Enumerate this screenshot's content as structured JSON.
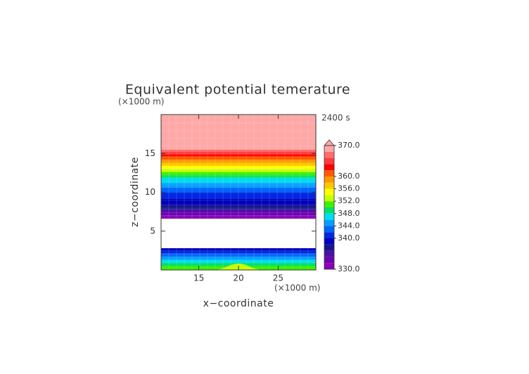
{
  "chart_data": {
    "type": "contour",
    "title": "Equivalent potential temerature",
    "y_unit": "(×1000 m)",
    "x_unit": "(×1000 m)",
    "time_label": "2400 s",
    "x_label": "x−coordinate",
    "y_label": "z−coordinate",
    "xlim": [
      10.25,
      29.75
    ],
    "ylim": [
      0,
      20
    ],
    "xticks": [
      15,
      20,
      25
    ],
    "yticks": [
      5,
      10,
      15
    ],
    "levels": [
      330,
      332,
      334,
      336,
      338,
      340,
      342,
      344,
      346,
      348,
      350,
      352,
      354,
      356,
      358,
      360,
      362,
      364,
      366,
      368
    ],
    "colors": [
      "#8c00b4",
      "#6e00b4",
      "#4c10a8",
      "#16168c",
      "#0000c0",
      "#0028e0",
      "#0064ff",
      "#00a0ff",
      "#00dcf0",
      "#00e070",
      "#40f000",
      "#c8ff00",
      "#ffff00",
      "#ffc800",
      "#ff9600",
      "#ff5a00",
      "#ff0000",
      "#ff3c3c",
      "#ff6e6e",
      "#ffa8a8"
    ],
    "over_color": "#ffa8a8",
    "clim": [
      330,
      370
    ],
    "cticks": [
      {
        "value": 330,
        "label": "330.0"
      },
      {
        "value": 340,
        "label": "340.0"
      },
      {
        "value": 344,
        "label": "344.0"
      },
      {
        "value": 348,
        "label": "348.0"
      },
      {
        "value": 352,
        "label": "352.0"
      },
      {
        "value": 356,
        "label": "356.0"
      },
      {
        "value": 360,
        "label": "360.0"
      },
      {
        "value": 370,
        "label": "370.0"
      }
    ],
    "bands": [
      {
        "z": [
          15.5,
          20
        ],
        "level": 368
      },
      {
        "z": [
          15.2,
          15.5
        ],
        "level": 366
      },
      {
        "z": [
          14.9,
          15.2
        ],
        "level": 364
      },
      {
        "z": [
          14.6,
          14.9
        ],
        "level": 362
      },
      {
        "z": [
          14.2,
          14.6
        ],
        "level": 360
      },
      {
        "z": [
          13.8,
          14.2
        ],
        "level": 358
      },
      {
        "z": [
          13.4,
          13.8
        ],
        "level": 356
      },
      {
        "z": [
          13.0,
          13.4
        ],
        "level": 354
      },
      {
        "z": [
          12.6,
          13.0
        ],
        "level": 352
      },
      {
        "z": [
          12.2,
          12.6
        ],
        "level": 350
      },
      {
        "z": [
          11.8,
          12.2
        ],
        "level": 348
      },
      {
        "z": [
          11.2,
          11.8
        ],
        "level": 346
      },
      {
        "z": [
          10.6,
          11.2
        ],
        "level": 344
      },
      {
        "z": [
          10.0,
          10.6
        ],
        "level": 342
      },
      {
        "z": [
          9.2,
          10.0
        ],
        "level": 340
      },
      {
        "z": [
          8.4,
          9.2
        ],
        "level": 338
      },
      {
        "z": [
          7.8,
          8.4
        ],
        "level": 336
      },
      {
        "z": [
          7.4,
          7.8
        ],
        "level": 334
      },
      {
        "z": [
          7.0,
          7.4
        ],
        "level": 332
      },
      {
        "z": [
          6.6,
          7.0
        ],
        "level": 330
      },
      {
        "z": [
          2.5,
          2.8
        ],
        "level": 338
      },
      {
        "z": [
          2.1,
          2.5
        ],
        "level": 340
      },
      {
        "z": [
          1.7,
          2.1
        ],
        "level": 342
      },
      {
        "z": [
          1.3,
          1.7
        ],
        "level": 344
      },
      {
        "z": [
          0.9,
          1.3
        ],
        "level": 346
      },
      {
        "z": [
          0.5,
          0.9
        ],
        "level": 348
      },
      {
        "z": [
          0,
          0.5
        ],
        "level": 350
      }
    ],
    "patches": [
      {
        "x": [
          16.5,
          23.5
        ],
        "z": [
          0,
          0.8
        ],
        "level": 352
      }
    ]
  }
}
